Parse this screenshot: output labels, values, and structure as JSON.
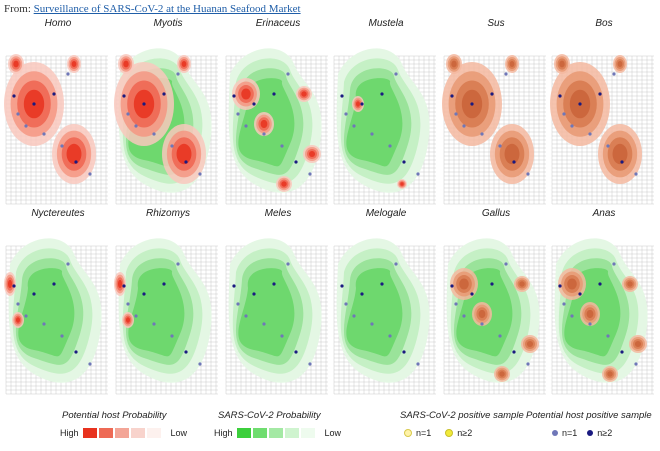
{
  "header": {
    "prefix": "From: ",
    "link": "Surveillance of SARS-CoV-2 at the Huanan Seafood Market"
  },
  "panels": [
    {
      "name": "Homo",
      "red": "high",
      "green": "none",
      "tone": "red"
    },
    {
      "name": "Myotis",
      "red": "high",
      "green": "normal",
      "tone": "red"
    },
    {
      "name": "Erinaceus",
      "red": "spots",
      "green": "normal",
      "tone": "red"
    },
    {
      "name": "Mustela",
      "red": "small",
      "green": "normal",
      "tone": "red"
    },
    {
      "name": "Sus",
      "red": "high",
      "green": "none",
      "tone": "brown"
    },
    {
      "name": "Bos",
      "red": "high",
      "green": "none",
      "tone": "brown"
    },
    {
      "name": "Nyctereutes",
      "red": "edge",
      "green": "normal",
      "tone": "red"
    },
    {
      "name": "Rhizomys",
      "red": "edge",
      "green": "normal",
      "tone": "red"
    },
    {
      "name": "Meles",
      "red": "none",
      "green": "normal",
      "tone": "red"
    },
    {
      "name": "Melogale",
      "red": "none",
      "green": "normal",
      "tone": "red"
    },
    {
      "name": "Gallus",
      "red": "spots",
      "green": "normal",
      "tone": "brown"
    },
    {
      "name": "Anas",
      "red": "spots",
      "green": "normal",
      "tone": "brown"
    }
  ],
  "legend": {
    "host": {
      "title": "Potential host Probability",
      "high": "High",
      "low": "Low",
      "colors": [
        "#e8321e",
        "#ee6a55",
        "#f3a597",
        "#f8d3cc",
        "#fdf1ee"
      ]
    },
    "sars": {
      "title": "SARS-CoV-2 Probability",
      "high": "High",
      "low": "Low",
      "colors": [
        "#3ccf3c",
        "#6fdd6f",
        "#a4e9a4",
        "#cff4cf",
        "#eefbee"
      ]
    },
    "sars_sample": {
      "title": "SARS-CoV-2 positive sample",
      "n1": "n=1",
      "n2": "n≥2",
      "c1": "#fff3a8",
      "c2": "#f1ea3a"
    },
    "host_sample": {
      "title": "Potential host positive sample",
      "n1": "n=1",
      "n2": "n≥2",
      "c1": "#6f77b8",
      "c2": "#1a1a80"
    }
  }
}
